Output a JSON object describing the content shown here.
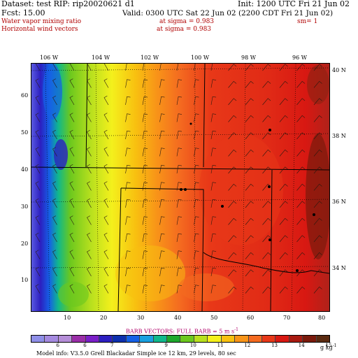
{
  "header": {
    "dataset_line": "Dataset: test  RIP: rip20020621 d1",
    "init_line": "Init: 1200 UTC Fri 21 Jun 02",
    "fcst_line": "Fcst:   15.00",
    "valid_line": "Valid: 0300 UTC Sat 22 Jun 02 (2200 CDT Fri 21 Jun 02)",
    "field1_name": "Water vapor mixing ratio",
    "field1_level": "at sigma = 0.983",
    "field1_sm": "sm= 1",
    "field2_name": "Horizontal wind vectors",
    "field2_level": "at sigma = 0.983"
  },
  "map": {
    "top_longitudes": [
      "106 W",
      "104 W",
      "102 W",
      "100 W",
      "98 W",
      "96 W"
    ],
    "right_latitudes": [
      "40 N",
      "38 N",
      "36 N",
      "34 N"
    ],
    "grid_y_labels": [
      "60",
      "50",
      "40",
      "30",
      "20",
      "10"
    ],
    "grid_x_labels": [
      "10",
      "20",
      "30",
      "40",
      "50",
      "60",
      "70",
      "80"
    ],
    "cities_shown": 9
  },
  "legend": {
    "barb_title": "BARB VECTORS:  FULL BARB = 5 m s",
    "barb_sup": "-1",
    "colorbar_values": [
      "6",
      "6",
      "7",
      "8",
      "9",
      "10",
      "11",
      "12",
      "13",
      "14",
      "15"
    ],
    "colorbar_unit": "g kg",
    "colorbar_unit_sup": "-1",
    "colorbar_colors": [
      "#8f8fe8",
      "#a58ae0",
      "#b58ed8",
      "#9a2ea8",
      "#7a1fc8",
      "#2c1fc0",
      "#0d2fae",
      "#1560e6",
      "#1aa0e0",
      "#10b88c",
      "#1ea82c",
      "#6cc81e",
      "#b8e01e",
      "#f4f01c",
      "#f8c010",
      "#f89418",
      "#f46a20",
      "#e83818",
      "#d81812",
      "#a81a10",
      "#7a1a0c",
      "#5a2a10"
    ],
    "model_info": "Model info: V3.5.0   Grell      Blackadar   Simple ice    12 km,  29 levels,   80 sec"
  }
}
